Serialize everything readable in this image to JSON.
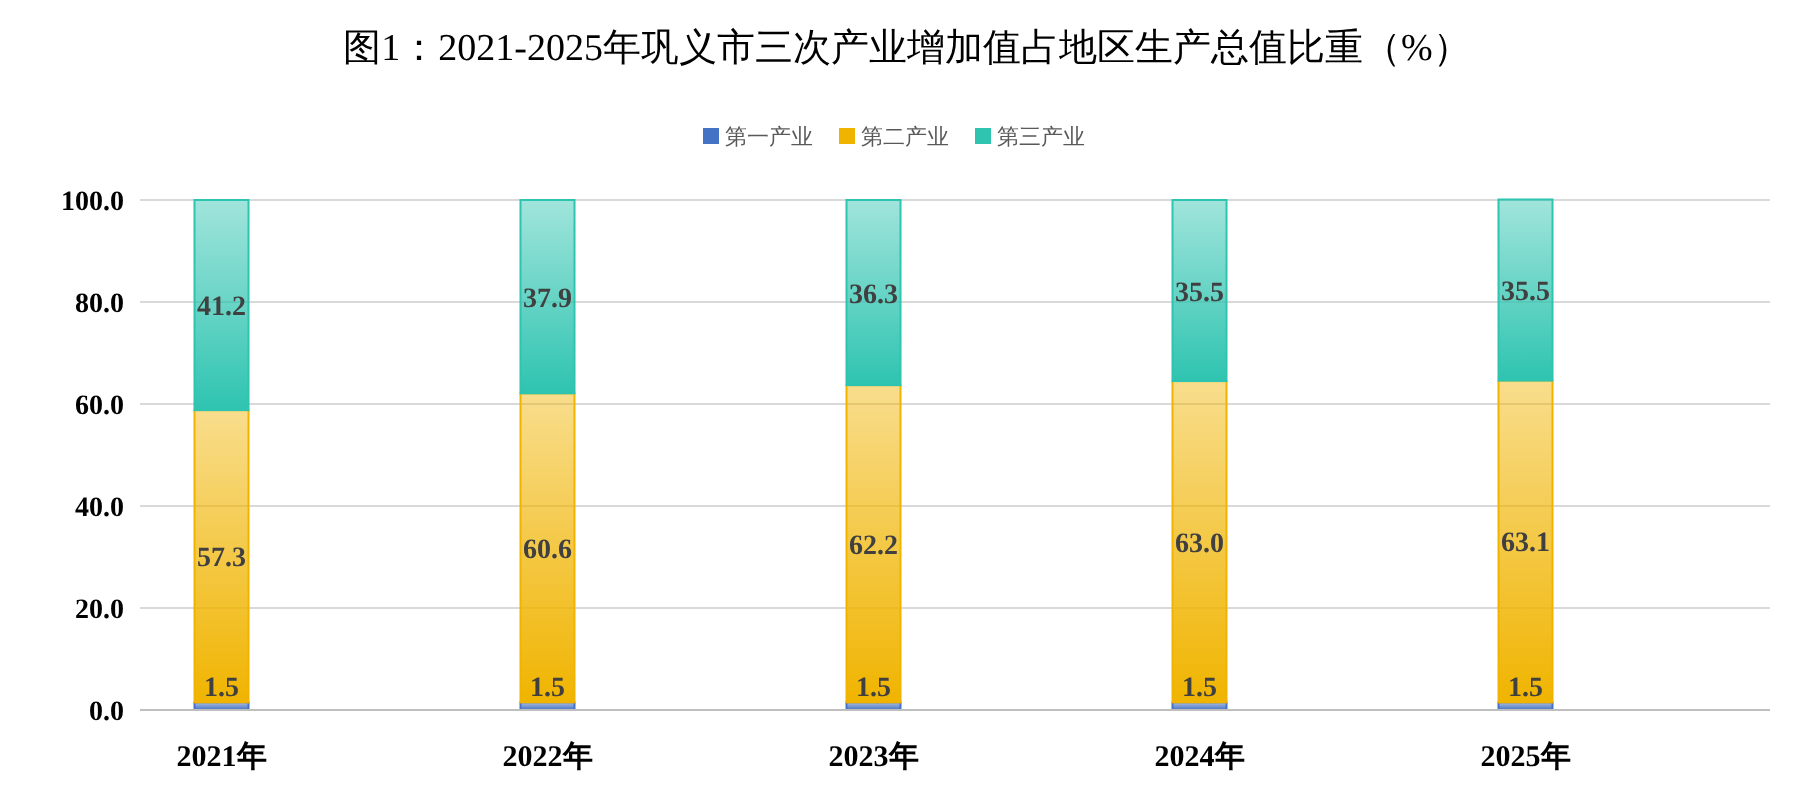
{
  "chart_data": {
    "type": "bar",
    "stacked": true,
    "title": "图1：2021-2025年巩义市三次产业增加值占地区生产总值比重（%）",
    "categories": [
      "2021年",
      "2022年",
      "2023年",
      "2024年",
      "2025年"
    ],
    "series": [
      {
        "name": "第一产业",
        "color": "#4472c4",
        "values": [
          1.5,
          1.5,
          1.5,
          1.5,
          1.5
        ],
        "value_labels": [
          "1.5",
          "1.5",
          "1.5",
          "1.5",
          "1.5"
        ]
      },
      {
        "name": "第二产业",
        "color": "#f0b400",
        "values": [
          57.3,
          60.6,
          62.2,
          63.0,
          63.1
        ],
        "value_labels": [
          "57.3",
          "60.6",
          "62.2",
          "63.0",
          "63.1"
        ]
      },
      {
        "name": "第三产业",
        "color": "#2ec4b0",
        "values": [
          41.2,
          37.9,
          36.3,
          35.5,
          35.5
        ],
        "value_labels": [
          "41.2",
          "37.9",
          "36.3",
          "35.5",
          "35.5"
        ]
      }
    ],
    "ylim": [
      0,
      100
    ],
    "yticks": [
      {
        "value": 0,
        "label": "0.0"
      },
      {
        "value": 20,
        "label": "20.0"
      },
      {
        "value": 40,
        "label": "40.0"
      },
      {
        "value": 60,
        "label": "60.0"
      },
      {
        "value": 80,
        "label": "80.0"
      },
      {
        "value": 100,
        "label": "100.0"
      }
    ],
    "grid": "y",
    "legend": "top"
  }
}
